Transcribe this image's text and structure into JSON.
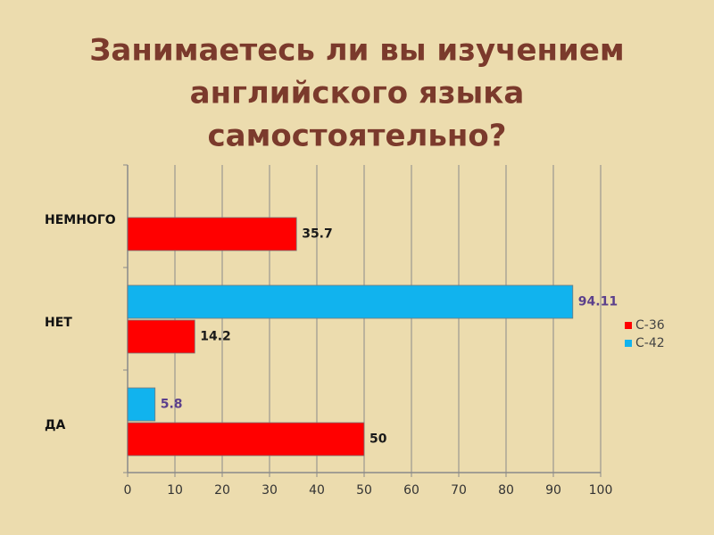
{
  "chart_data": {
    "type": "hbar",
    "title": [
      "Занимаетесь ли вы изучением",
      "английского языка",
      "самостоятельно?"
    ],
    "categories": [
      "НЕМНОГО",
      "НЕТ",
      "ДА"
    ],
    "series": [
      {
        "name": "С-36",
        "color": "#ff0000",
        "label_color": "#1a1a1a",
        "values": [
          35.7,
          14.2,
          50
        ]
      },
      {
        "name": "С-42",
        "color": "#11b3ee",
        "label_color": "#5b3f8c",
        "values": [
          null,
          94.11,
          5.8
        ]
      }
    ],
    "xlim": [
      0,
      100
    ],
    "xticks": [
      0,
      10,
      20,
      30,
      40,
      50,
      60,
      70,
      80,
      90,
      100
    ],
    "grid": true,
    "legend": "right"
  }
}
